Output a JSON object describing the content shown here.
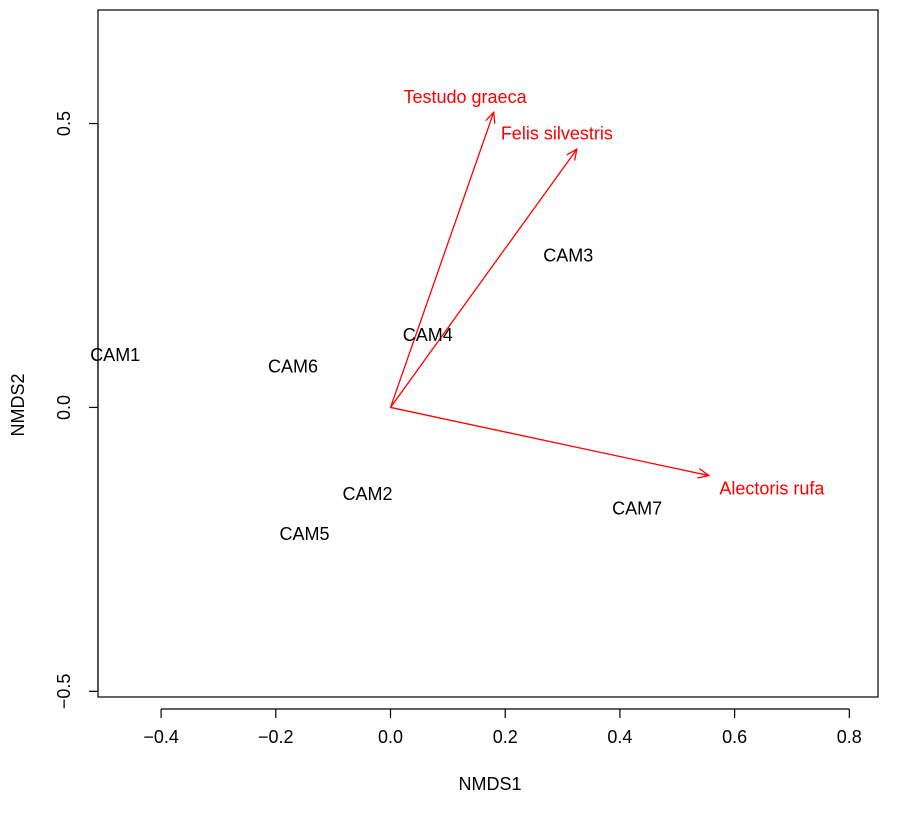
{
  "chart_data": {
    "type": "scatter",
    "title": "",
    "xlabel": "NMDS1",
    "ylabel": "NMDS2",
    "xlim": [
      -0.51,
      0.85
    ],
    "ylim": [
      -0.51,
      0.7
    ],
    "x_ticks": [
      -0.4,
      -0.2,
      0.0,
      0.2,
      0.4,
      0.6,
      0.8
    ],
    "x_tick_labels": [
      "−0.4",
      "−0.2",
      "0.0",
      "0.2",
      "0.4",
      "0.6",
      "0.8"
    ],
    "y_ticks": [
      -0.5,
      0.0,
      0.5
    ],
    "y_tick_labels": [
      "−0.5",
      "0.0",
      "0.5"
    ],
    "grid": false,
    "points": [
      {
        "label": "CAM1",
        "x": -0.48,
        "y": 0.09
      },
      {
        "label": "CAM2",
        "x": -0.04,
        "y": -0.155
      },
      {
        "label": "CAM3",
        "x": 0.31,
        "y": 0.265
      },
      {
        "label": "CAM4",
        "x": 0.065,
        "y": 0.125
      },
      {
        "label": "CAM5",
        "x": -0.15,
        "y": -0.225
      },
      {
        "label": "CAM6",
        "x": -0.17,
        "y": 0.07
      },
      {
        "label": "CAM7",
        "x": 0.43,
        "y": -0.18
      }
    ],
    "vectors": [
      {
        "label": "Testudo graeca",
        "x": 0.18,
        "y": 0.52,
        "label_x": 0.13,
        "label_y": 0.545
      },
      {
        "label": "Felis silvestris",
        "x": 0.325,
        "y": 0.455,
        "label_x": 0.29,
        "label_y": 0.48
      },
      {
        "label": "Alectoris rufa",
        "x": 0.555,
        "y": -0.12,
        "label_x": 0.665,
        "label_y": -0.145
      }
    ],
    "vector_color": "#ff0000",
    "point_color": "#000000"
  }
}
